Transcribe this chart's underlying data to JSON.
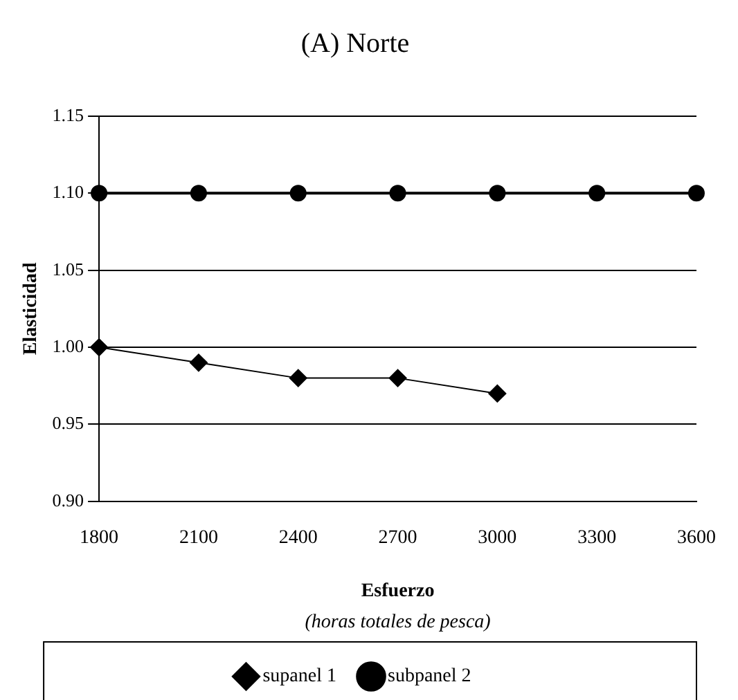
{
  "chart_data": {
    "type": "line",
    "title": "(A) Norte",
    "xlabel": "Esfuerzo",
    "ylabel": "Elasticidad",
    "annotations": [
      "(horas totales de pesca)"
    ],
    "categories": [
      "1800",
      "2100",
      "2400",
      "2700",
      "3000",
      "3300",
      "3600"
    ],
    "series": [
      {
        "name": "supanel 1",
        "color": "#000000",
        "marker": "diamond",
        "values": [
          1.0,
          0.99,
          0.98,
          0.98,
          0.97,
          null,
          null
        ]
      },
      {
        "name": "subpanel 2",
        "color": "#000000",
        "marker": "circle",
        "values": [
          1.1,
          1.1,
          1.1,
          1.1,
          1.1,
          1.1,
          1.1
        ]
      }
    ],
    "ylim": [
      0.9,
      1.15
    ],
    "yticks": [
      {
        "value": 0.9,
        "label": "0.90"
      },
      {
        "value": 0.95,
        "label": "0.95"
      },
      {
        "value": 1.0,
        "label": "1.00"
      },
      {
        "value": 1.05,
        "label": "1.05"
      },
      {
        "value": 1.1,
        "label": "1.10"
      },
      {
        "value": 1.15,
        "label": "1.15"
      }
    ],
    "grid": "y",
    "legend": "bottom",
    "line_style": "solid"
  }
}
